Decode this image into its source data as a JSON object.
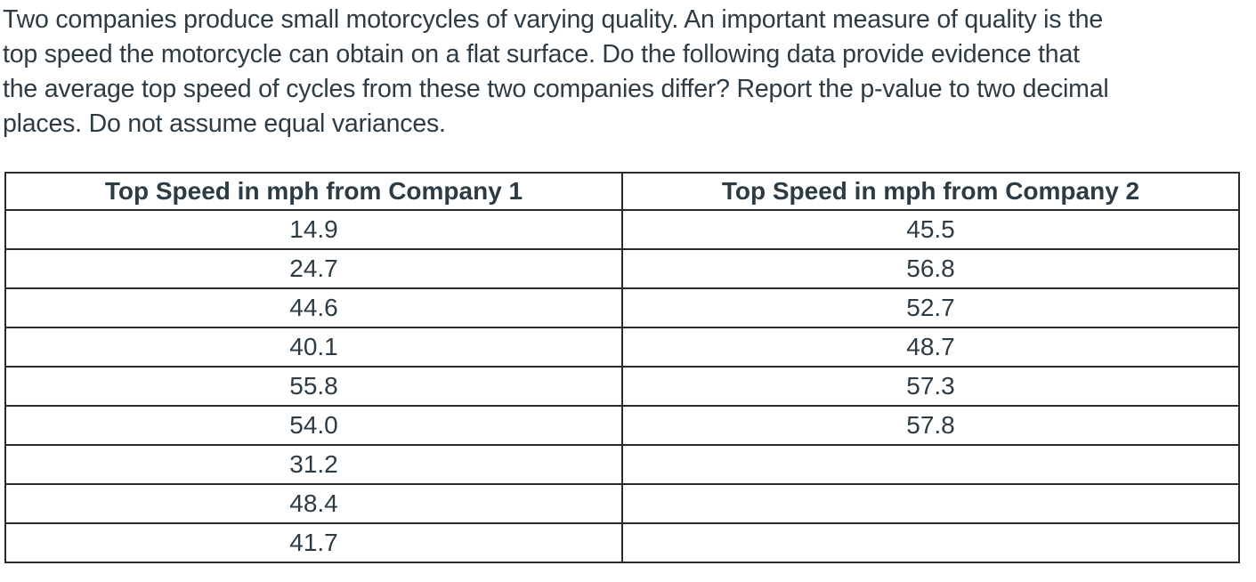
{
  "question": {
    "lines": [
      "Two companies produce small motorcycles of varying quality. An important measure of quality is the",
      "top speed the motorcycle can obtain on a flat surface. Do the following data provide evidence that",
      "the average top speed of cycles from these two companies differ? Report the p-value to two decimal",
      "places. Do not assume equal variances."
    ]
  },
  "table": {
    "headers": [
      "Top Speed in mph from Company 1",
      "Top Speed in mph from Company 2"
    ],
    "rows": [
      [
        "14.9",
        "45.5"
      ],
      [
        "24.7",
        "56.8"
      ],
      [
        "44.6",
        "52.7"
      ],
      [
        "40.1",
        "48.7"
      ],
      [
        "55.8",
        "57.3"
      ],
      [
        "54.0",
        "57.8"
      ],
      [
        "31.2",
        ""
      ],
      [
        "48.4",
        ""
      ],
      [
        "41.7",
        ""
      ]
    ]
  },
  "colors": {
    "text": "#2d3b45",
    "table_border": "#2b2b2b",
    "background": "#ffffff"
  }
}
